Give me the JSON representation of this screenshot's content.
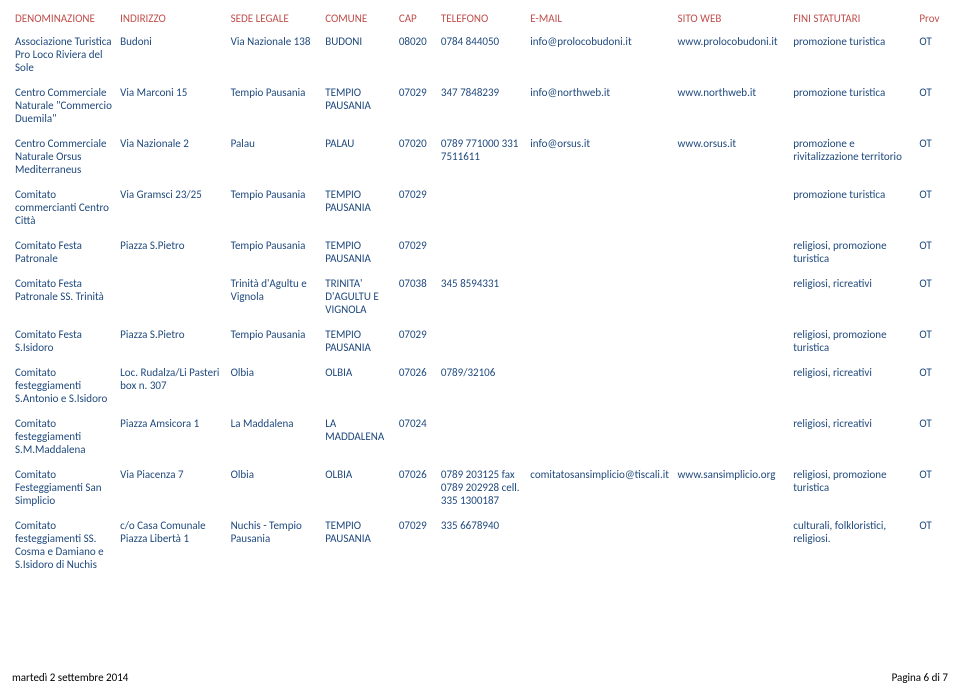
{
  "headers": [
    "DENOMINAZIONE",
    "INDIRIZZO",
    "SEDE LEGALE",
    "COMUNE",
    "CAP",
    "TELEFONO",
    "E-MAIL",
    "SITO WEB",
    "FINI STATUTARI",
    "Prov"
  ],
  "rows": [
    {
      "den": "Associazione Turistica Pro Loco Riviera del Sole",
      "ind": "Budoni",
      "sede": "Via Nazionale 138",
      "com": "BUDONI",
      "cap": "08020",
      "tel": "0784 844050",
      "mail": "info@prolocobudoni.it",
      "web": "www.prolocobudoni.it",
      "fini": "promozione turistica",
      "prov": "OT"
    },
    {
      "den": "Centro Commerciale Naturale \"Commercio Duemila\"",
      "ind": "Via Marconi 15",
      "sede": "Tempio Pausania",
      "com": "TEMPIO PAUSANIA",
      "cap": "07029",
      "tel": "347 7848239",
      "mail": "info@northweb.it",
      "web": "www.northweb.it",
      "fini": "promozione turistica",
      "prov": "OT"
    },
    {
      "den": "Centro Commerciale Naturale Orsus Mediterraneus",
      "ind": "Via Nazionale 2",
      "sede": "Palau",
      "com": "PALAU",
      "cap": "07020",
      "tel": "0789 771000 331 7511611",
      "mail": "info@orsus.it",
      "web": "www.orsus.it",
      "fini": "promozione e rivitalizzazione territorio",
      "prov": "OT"
    },
    {
      "den": "Comitato commercianti Centro Città",
      "ind": "Via Gramsci 23/25",
      "sede": "Tempio Pausania",
      "com": "TEMPIO PAUSANIA",
      "cap": "07029",
      "tel": "",
      "mail": "",
      "web": "",
      "fini": "promozione turistica",
      "prov": "OT"
    },
    {
      "den": "Comitato Festa Patronale",
      "ind": "Piazza S.Pietro",
      "sede": "Tempio Pausania",
      "com": "TEMPIO PAUSANIA",
      "cap": "07029",
      "tel": "",
      "mail": "",
      "web": "",
      "fini": "religiosi, promozione turistica",
      "prov": "OT"
    },
    {
      "den": "Comitato Festa Patronale SS. Trinità",
      "ind": "",
      "sede": "Trinità d'Agultu e Vignola",
      "com": "TRINITA' D'AGULTU E VIGNOLA",
      "cap": "07038",
      "tel": "345 8594331",
      "mail": "",
      "web": "",
      "fini": "religiosi, ricreativi",
      "prov": "OT"
    },
    {
      "den": "Comitato Festa S.Isidoro",
      "ind": "Piazza S.Pietro",
      "sede": "Tempio Pausania",
      "com": "TEMPIO PAUSANIA",
      "cap": "07029",
      "tel": "",
      "mail": "",
      "web": "",
      "fini": "religiosi, promozione turistica",
      "prov": "OT"
    },
    {
      "den": "Comitato festeggiamenti S.Antonio e S.Isidoro",
      "ind": "Loc. Rudalza/Li Pasteri box n. 307",
      "sede": "Olbia",
      "com": "OLBIA",
      "cap": "07026",
      "tel": "0789/32106",
      "mail": "",
      "web": "",
      "fini": "religiosi, ricreativi",
      "prov": "OT"
    },
    {
      "den": "Comitato festeggiamenti S.M.Maddalena",
      "ind": "Piazza Amsicora 1",
      "sede": "La Maddalena",
      "com": "LA MADDALENA",
      "cap": "07024",
      "tel": "",
      "mail": "",
      "web": "",
      "fini": "religiosi, ricreativi",
      "prov": "OT"
    },
    {
      "den": "Comitato Festeggiamenti San Simplicio",
      "ind": "Via Piacenza 7",
      "sede": "Olbia",
      "com": "OLBIA",
      "cap": "07026",
      "tel": "0789 203125 fax 0789 202928 cell. 335 1300187",
      "mail": "comitatosansimplicio@tiscali.it",
      "web": "www.sansimplicio.org",
      "fini": "religiosi, promozione turistica",
      "prov": "OT"
    },
    {
      "den": "Comitato festeggiamenti SS. Cosma e Damiano e S.Isidoro di Nuchis",
      "ind": "c/o Casa Comunale Piazza Libertà 1",
      "sede": "Nuchis - Tempio Pausania",
      "com": "TEMPIO PAUSANIA",
      "cap": "07029",
      "tel": "335 6678940",
      "mail": "",
      "web": "",
      "fini": "culturali, folkloristici, religiosi.",
      "prov": "OT"
    }
  ],
  "footer": {
    "date": "martedì 2 settembre 2014",
    "page": "Pagina 6 di 7"
  },
  "colors": {
    "header": "#c0504d",
    "body": "#1f497d",
    "background": "#ffffff"
  }
}
